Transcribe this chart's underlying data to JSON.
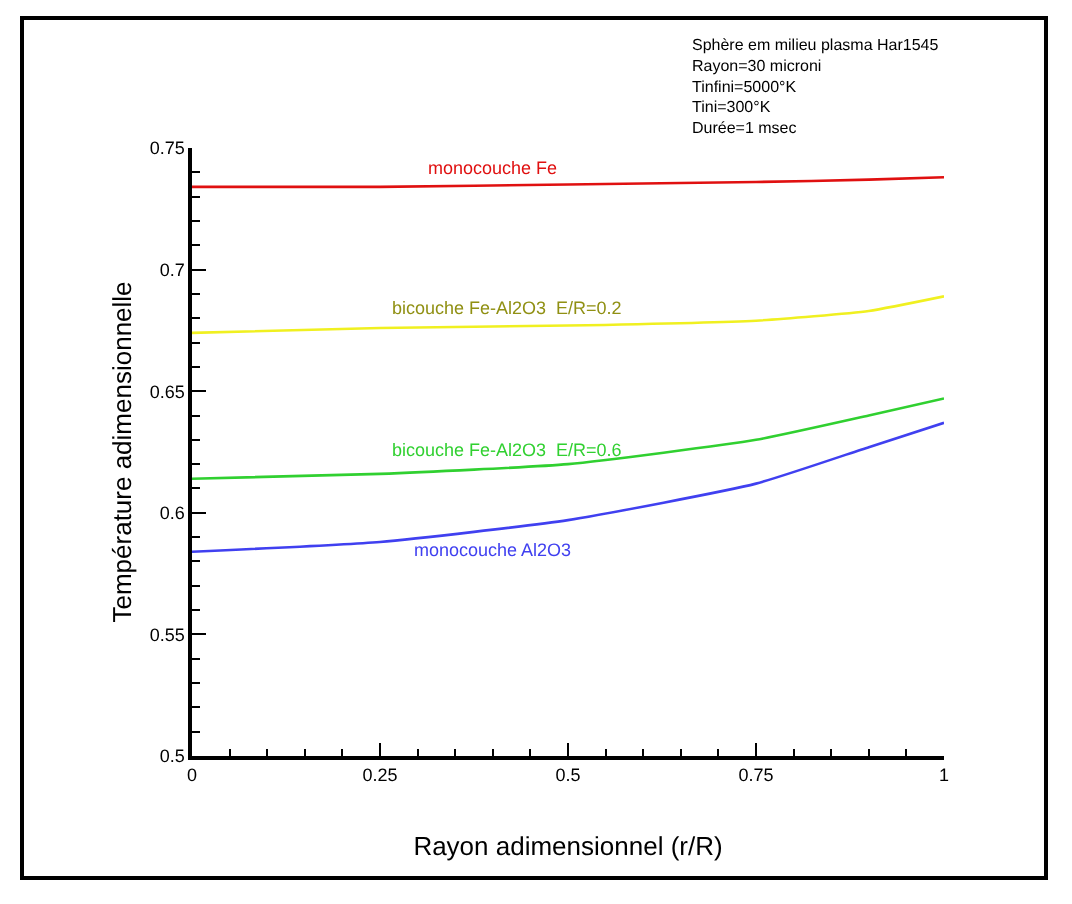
{
  "chart_data": {
    "type": "line",
    "xlabel": "Rayon adimensionnel (r/R)",
    "ylabel": "Température adimensionnelle",
    "annotations": [
      "Sphère em milieu plasma Har1545",
      "Rayon=30 microni",
      "Tinfini=5000°K",
      "Tini=300°K",
      "Durée=1 msec"
    ],
    "x": [
      0,
      0.25,
      0.5,
      0.75,
      0.9,
      1
    ],
    "series": [
      {
        "name": "monocouche Fe",
        "color": "#e01010",
        "values": [
          0.734,
          0.734,
          0.735,
          0.736,
          0.737,
          0.738
        ]
      },
      {
        "name": "bicouche Fe-Al2O3  E/R=0.2",
        "color": "#f0f020",
        "values": [
          0.674,
          0.676,
          0.677,
          0.679,
          0.683,
          0.689
        ]
      },
      {
        "name": "bicouche Fe-Al2O3  E/R=0.6",
        "color": "#30d030",
        "values": [
          0.614,
          0.616,
          0.62,
          0.63,
          0.64,
          0.647
        ]
      },
      {
        "name": "monocouche Al2O3",
        "color": "#4040f0",
        "values": [
          0.584,
          0.588,
          0.597,
          0.612,
          0.627,
          0.637
        ]
      }
    ],
    "xlim": [
      0,
      1
    ],
    "xticks": [
      0,
      0.25,
      0.5,
      0.75,
      1
    ],
    "ylim": [
      0.5,
      0.75
    ],
    "yticks": [
      0.5,
      0.55,
      0.6,
      0.65,
      0.7,
      0.75
    ],
    "grid": false,
    "legend": false,
    "marker": "none",
    "line_style": "solid"
  }
}
